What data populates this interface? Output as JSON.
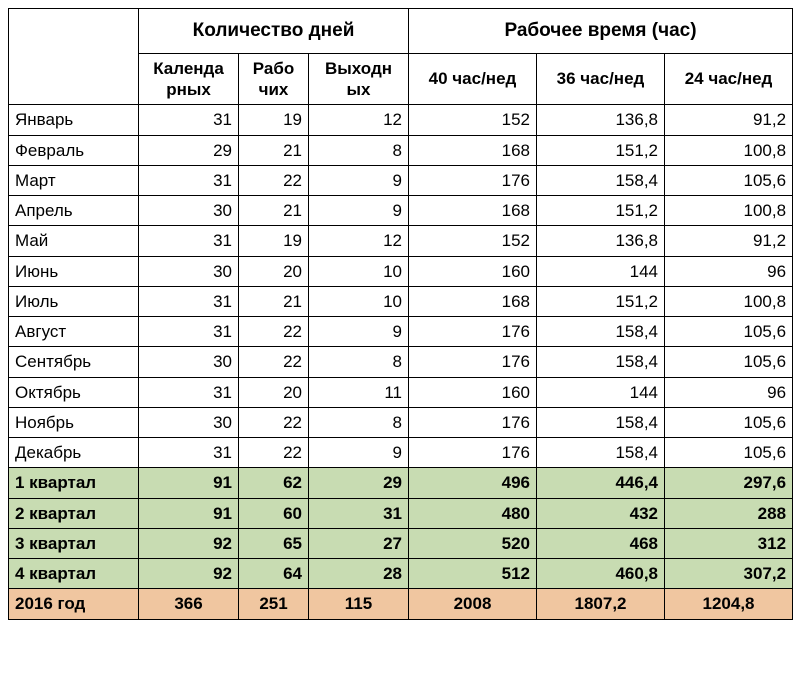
{
  "table": {
    "headerGroups": {
      "days": "Количество дней",
      "hours": "Рабочее время (час)"
    },
    "columns": {
      "cal": "Календа рных",
      "work": "Рабо чих",
      "off": "Выходн ых",
      "h40": "40 час/нед",
      "h36": "36 час/нед",
      "h24": "24 час/нед"
    },
    "rows": [
      {
        "label": "Январь",
        "cal": "31",
        "work": "19",
        "off": "12",
        "h40": "152",
        "h36": "136,8",
        "h24": "91,2",
        "type": "month"
      },
      {
        "label": "Февраль",
        "cal": "29",
        "work": "21",
        "off": "8",
        "h40": "168",
        "h36": "151,2",
        "h24": "100,8",
        "type": "month"
      },
      {
        "label": "Март",
        "cal": "31",
        "work": "22",
        "off": "9",
        "h40": "176",
        "h36": "158,4",
        "h24": "105,6",
        "type": "month"
      },
      {
        "label": "Апрель",
        "cal": "30",
        "work": "21",
        "off": "9",
        "h40": "168",
        "h36": "151,2",
        "h24": "100,8",
        "type": "month"
      },
      {
        "label": "Май",
        "cal": "31",
        "work": "19",
        "off": "12",
        "h40": "152",
        "h36": "136,8",
        "h24": "91,2",
        "type": "month"
      },
      {
        "label": "Июнь",
        "cal": "30",
        "work": "20",
        "off": "10",
        "h40": "160",
        "h36": "144",
        "h24": "96",
        "type": "month"
      },
      {
        "label": "Июль",
        "cal": "31",
        "work": "21",
        "off": "10",
        "h40": "168",
        "h36": "151,2",
        "h24": "100,8",
        "type": "month"
      },
      {
        "label": "Август",
        "cal": "31",
        "work": "22",
        "off": "9",
        "h40": "176",
        "h36": "158,4",
        "h24": "105,6",
        "type": "month"
      },
      {
        "label": "Сентябрь",
        "cal": "30",
        "work": "22",
        "off": "8",
        "h40": "176",
        "h36": "158,4",
        "h24": "105,6",
        "type": "month"
      },
      {
        "label": "Октябрь",
        "cal": "31",
        "work": "20",
        "off": "11",
        "h40": "160",
        "h36": "144",
        "h24": "96",
        "type": "month"
      },
      {
        "label": "Ноябрь",
        "cal": "30",
        "work": "22",
        "off": "8",
        "h40": "176",
        "h36": "158,4",
        "h24": "105,6",
        "type": "month"
      },
      {
        "label": "Декабрь",
        "cal": "31",
        "work": "22",
        "off": "9",
        "h40": "176",
        "h36": "158,4",
        "h24": "105,6",
        "type": "month"
      },
      {
        "label": "1 квартал",
        "cal": "91",
        "work": "62",
        "off": "29",
        "h40": "496",
        "h36": "446,4",
        "h24": "297,6",
        "type": "quarter"
      },
      {
        "label": "2 квартал",
        "cal": "91",
        "work": "60",
        "off": "31",
        "h40": "480",
        "h36": "432",
        "h24": "288",
        "type": "quarter"
      },
      {
        "label": "3 квартал",
        "cal": "92",
        "work": "65",
        "off": "27",
        "h40": "520",
        "h36": "468",
        "h24": "312",
        "type": "quarter"
      },
      {
        "label": "4 квартал",
        "cal": "92",
        "work": "64",
        "off": "28",
        "h40": "512",
        "h36": "460,8",
        "h24": "307,2",
        "type": "quarter"
      },
      {
        "label": "2016 год",
        "cal": "366",
        "work": "251",
        "off": "115",
        "h40": "2008",
        "h36": "1807,2",
        "h24": "1204,8",
        "type": "year"
      }
    ],
    "styles": {
      "month_bg": "#ffffff",
      "quarter_bg": "#c8dcb2",
      "year_bg": "#f0c6a0",
      "border_color": "#000000",
      "font_family": "Arial",
      "cell_fontsize_pt": 13,
      "header_fontsize_pt": 14
    }
  }
}
